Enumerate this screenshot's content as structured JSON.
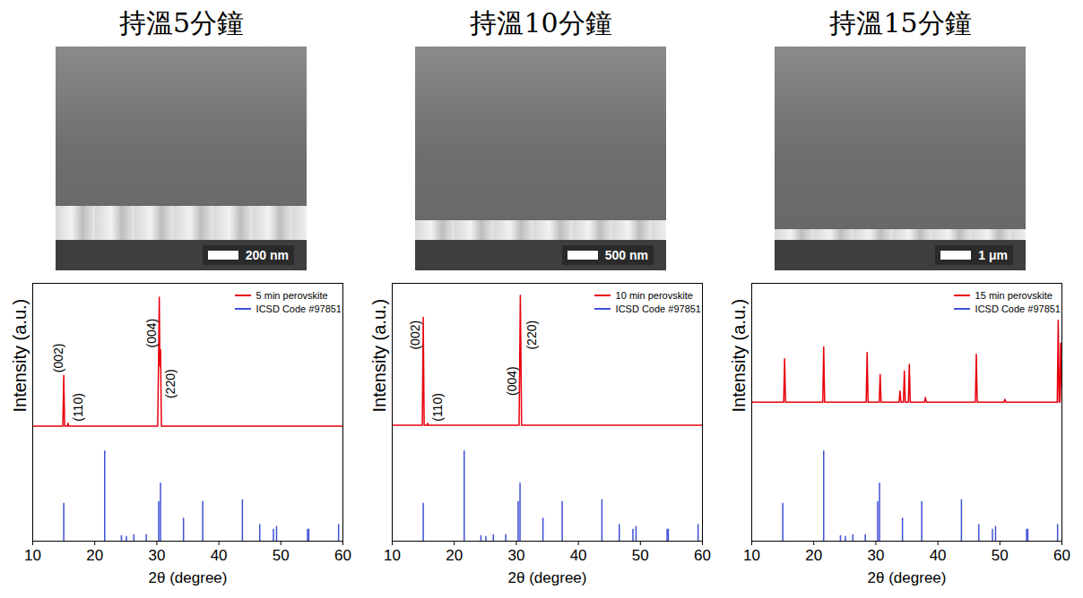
{
  "chart_data": [
    {
      "type": "xrd",
      "title": "持溫5分鐘",
      "image": {
        "scale_bar": "200 nm"
      },
      "x_label": "2θ (degree)",
      "y_label": "Intensity (a.u.)",
      "xlim": [
        10,
        60
      ],
      "xticks": [
        10,
        20,
        30,
        40,
        50,
        60
      ],
      "ylim": [
        0,
        2.8
      ],
      "yticks": [],
      "tick_labels": "x",
      "legend": "top-right",
      "series": [
        {
          "name": "5 min perovskite",
          "color": "#e8000b",
          "type": "line",
          "x": [
            10,
            14.85,
            15.0,
            15.15,
            15.6,
            15.7,
            15.8,
            30.15,
            30.4,
            30.5,
            30.6,
            30.75,
            60
          ],
          "values": [
            1.25,
            1.25,
            1.8,
            1.25,
            1.25,
            1.28,
            1.25,
            1.25,
            2.65,
            1.9,
            2.08,
            1.25,
            1.25
          ]
        },
        {
          "name": "ICSD Code #97851",
          "color": "#3f51d6",
          "type": "stick",
          "x": [
            15.0,
            21.6,
            24.3,
            25.1,
            26.3,
            28.3,
            30.3,
            30.6,
            34.3,
            37.4,
            43.8,
            46.6,
            48.8,
            49.3,
            54.3,
            54.5,
            59.3
          ],
          "values": [
            0.41,
            0.98,
            0.06,
            0.05,
            0.07,
            0.07,
            0.43,
            0.63,
            0.25,
            0.43,
            0.45,
            0.18,
            0.13,
            0.16,
            0.13,
            0.13,
            0.18
          ]
        }
      ],
      "annotations": [
        {
          "text": "(002)",
          "x": 14.2,
          "y": 1.83
        },
        {
          "text": "(110)",
          "x": 17.3,
          "y": 1.3
        },
        {
          "text": "(004)",
          "x": 29.2,
          "y": 2.1
        },
        {
          "text": "(220)",
          "x": 32.3,
          "y": 1.55
        }
      ]
    },
    {
      "type": "xrd",
      "title": "持溫10分鐘",
      "image": {
        "scale_bar": "500 nm"
      },
      "x_label": "2θ (degree)",
      "y_label": "Intensity (a.u.)",
      "xlim": [
        10,
        60
      ],
      "xticks": [
        10,
        20,
        30,
        40,
        50,
        60
      ],
      "ylim": [
        0,
        2.8
      ],
      "yticks": [],
      "tick_labels": "x",
      "legend": "top-right",
      "series": [
        {
          "name": "10 min perovskite",
          "color": "#e8000b",
          "type": "line",
          "x": [
            10,
            14.85,
            15.0,
            15.15,
            15.6,
            15.7,
            15.8,
            30.45,
            30.65,
            30.85,
            60
          ],
          "values": [
            1.26,
            1.26,
            2.43,
            1.26,
            1.26,
            1.28,
            1.26,
            1.26,
            2.67,
            1.26,
            1.26
          ]
        },
        {
          "name": "ICSD Code #97851",
          "color": "#3f51d6",
          "type": "stick",
          "x": [
            15.0,
            21.6,
            24.3,
            25.1,
            26.3,
            28.3,
            30.3,
            30.6,
            34.3,
            37.4,
            43.8,
            46.6,
            48.8,
            49.3,
            54.3,
            54.5,
            59.3
          ],
          "values": [
            0.41,
            0.98,
            0.06,
            0.05,
            0.07,
            0.07,
            0.43,
            0.63,
            0.25,
            0.43,
            0.45,
            0.18,
            0.13,
            0.16,
            0.13,
            0.13,
            0.18
          ]
        }
      ],
      "annotations": [
        {
          "text": "(002)",
          "x": 13.7,
          "y": 2.08
        },
        {
          "text": "(110)",
          "x": 17.3,
          "y": 1.3
        },
        {
          "text": "(004)",
          "x": 29.3,
          "y": 1.58
        },
        {
          "text": "(220)",
          "x": 32.5,
          "y": 2.08
        }
      ]
    },
    {
      "type": "xrd",
      "title": "持溫15分鐘",
      "image": {
        "scale_bar": "1 μm"
      },
      "x_label": "2θ (degree)",
      "y_label": "Intensity (a.u.)",
      "xlim": [
        10,
        60
      ],
      "xticks": [
        10,
        20,
        30,
        40,
        50,
        60
      ],
      "ylim": [
        0,
        2.8
      ],
      "yticks": [],
      "tick_labels": "x",
      "legend": "top-right",
      "series": [
        {
          "name": "15 min perovskite",
          "color": "#e8000b",
          "type": "line",
          "x": [
            10,
            15.15,
            15.3,
            15.45,
            21.45,
            21.6,
            21.75,
            28.45,
            28.6,
            28.75,
            30.55,
            30.7,
            30.85,
            33.75,
            33.9,
            34.05,
            34.45,
            34.6,
            34.75,
            35.25,
            35.4,
            35.55,
            37.85,
            38.0,
            38.15,
            46.05,
            46.2,
            46.35,
            50.65,
            50.8,
            50.95,
            59.25,
            59.4,
            59.55,
            59.65,
            59.8,
            60
          ],
          "values": [
            1.51,
            1.51,
            1.98,
            1.51,
            1.51,
            2.11,
            1.51,
            1.51,
            2.05,
            1.51,
            1.51,
            1.81,
            1.51,
            1.51,
            1.63,
            1.51,
            1.51,
            1.85,
            1.51,
            1.51,
            1.92,
            1.51,
            1.51,
            1.56,
            1.51,
            1.51,
            2.03,
            1.51,
            1.51,
            1.54,
            1.51,
            1.51,
            2.4,
            1.51,
            1.51,
            2.15,
            1.51
          ]
        },
        {
          "name": "ICSD Code #97851",
          "color": "#3f51d6",
          "type": "stick",
          "x": [
            15.0,
            21.6,
            24.3,
            25.1,
            26.3,
            28.3,
            30.3,
            30.6,
            34.3,
            37.4,
            43.8,
            46.6,
            48.8,
            49.3,
            54.3,
            54.5,
            59.3
          ],
          "values": [
            0.41,
            0.98,
            0.06,
            0.05,
            0.07,
            0.07,
            0.43,
            0.63,
            0.25,
            0.43,
            0.45,
            0.18,
            0.13,
            0.16,
            0.13,
            0.13,
            0.18
          ]
        }
      ],
      "annotations": []
    }
  ]
}
